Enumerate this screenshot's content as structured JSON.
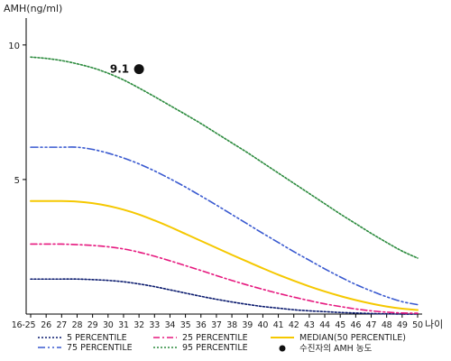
{
  "chart_data": {
    "type": "line",
    "ylabel": "AMH(ng/ml)",
    "xlabel": "나이",
    "yticks": [
      "5",
      "10"
    ],
    "ylim": [
      0,
      11
    ],
    "categories": [
      "16-25",
      "26",
      "27",
      "28",
      "29",
      "30",
      "31",
      "32",
      "33",
      "34",
      "35",
      "36",
      "37",
      "38",
      "39",
      "40",
      "41",
      "42",
      "43",
      "44",
      "45",
      "46",
      "47",
      "48",
      "49",
      "50"
    ],
    "series": [
      {
        "name": "5 PERCENTILE",
        "color": "#0a1a6e",
        "dash": "2,2",
        "values": [
          1.3,
          1.3,
          1.3,
          1.3,
          1.28,
          1.25,
          1.2,
          1.12,
          1.02,
          0.9,
          0.78,
          0.66,
          0.55,
          0.45,
          0.36,
          0.28,
          0.22,
          0.16,
          0.12,
          0.09,
          0.06,
          0.04,
          0.02,
          0.01,
          0.0,
          0.0
        ]
      },
      {
        "name": "25 PERCENTILE",
        "color": "#e6197f",
        "dash": "7,3,2,3",
        "values": [
          2.6,
          2.6,
          2.6,
          2.58,
          2.55,
          2.5,
          2.42,
          2.3,
          2.15,
          1.98,
          1.8,
          1.62,
          1.43,
          1.25,
          1.08,
          0.92,
          0.77,
          0.63,
          0.5,
          0.38,
          0.28,
          0.19,
          0.12,
          0.07,
          0.04,
          0.03
        ]
      },
      {
        "name": "MEDIAN(50 PERCENTILE)",
        "color": "#f5c800",
        "dash": "",
        "values": [
          4.2,
          4.2,
          4.2,
          4.18,
          4.12,
          4.02,
          3.88,
          3.7,
          3.48,
          3.24,
          2.98,
          2.72,
          2.46,
          2.2,
          1.95,
          1.7,
          1.46,
          1.24,
          1.03,
          0.84,
          0.67,
          0.52,
          0.39,
          0.28,
          0.2,
          0.15
        ]
      },
      {
        "name": "75 PERCENTILE",
        "color": "#3a5ad0",
        "dash": "8,3,2,3,2,3",
        "values": [
          6.2,
          6.2,
          6.2,
          6.2,
          6.12,
          5.98,
          5.8,
          5.58,
          5.32,
          5.03,
          4.72,
          4.39,
          4.05,
          3.7,
          3.35,
          3.0,
          2.66,
          2.32,
          2.0,
          1.68,
          1.38,
          1.1,
          0.86,
          0.64,
          0.46,
          0.35
        ]
      },
      {
        "name": "95 PERCENTILE",
        "color": "#2a8a3c",
        "dash": "2,2",
        "values": [
          9.55,
          9.5,
          9.42,
          9.3,
          9.15,
          8.95,
          8.7,
          8.4,
          8.08,
          7.75,
          7.42,
          7.08,
          6.72,
          6.36,
          6.0,
          5.62,
          5.24,
          4.86,
          4.48,
          4.1,
          3.72,
          3.36,
          3.0,
          2.66,
          2.34,
          2.08
        ]
      }
    ],
    "marker": {
      "name": "수진자의 AMH 농도",
      "label": "9.1",
      "x": "32",
      "y": 9.1,
      "color": "#111111"
    },
    "legend_position": "bottom"
  }
}
